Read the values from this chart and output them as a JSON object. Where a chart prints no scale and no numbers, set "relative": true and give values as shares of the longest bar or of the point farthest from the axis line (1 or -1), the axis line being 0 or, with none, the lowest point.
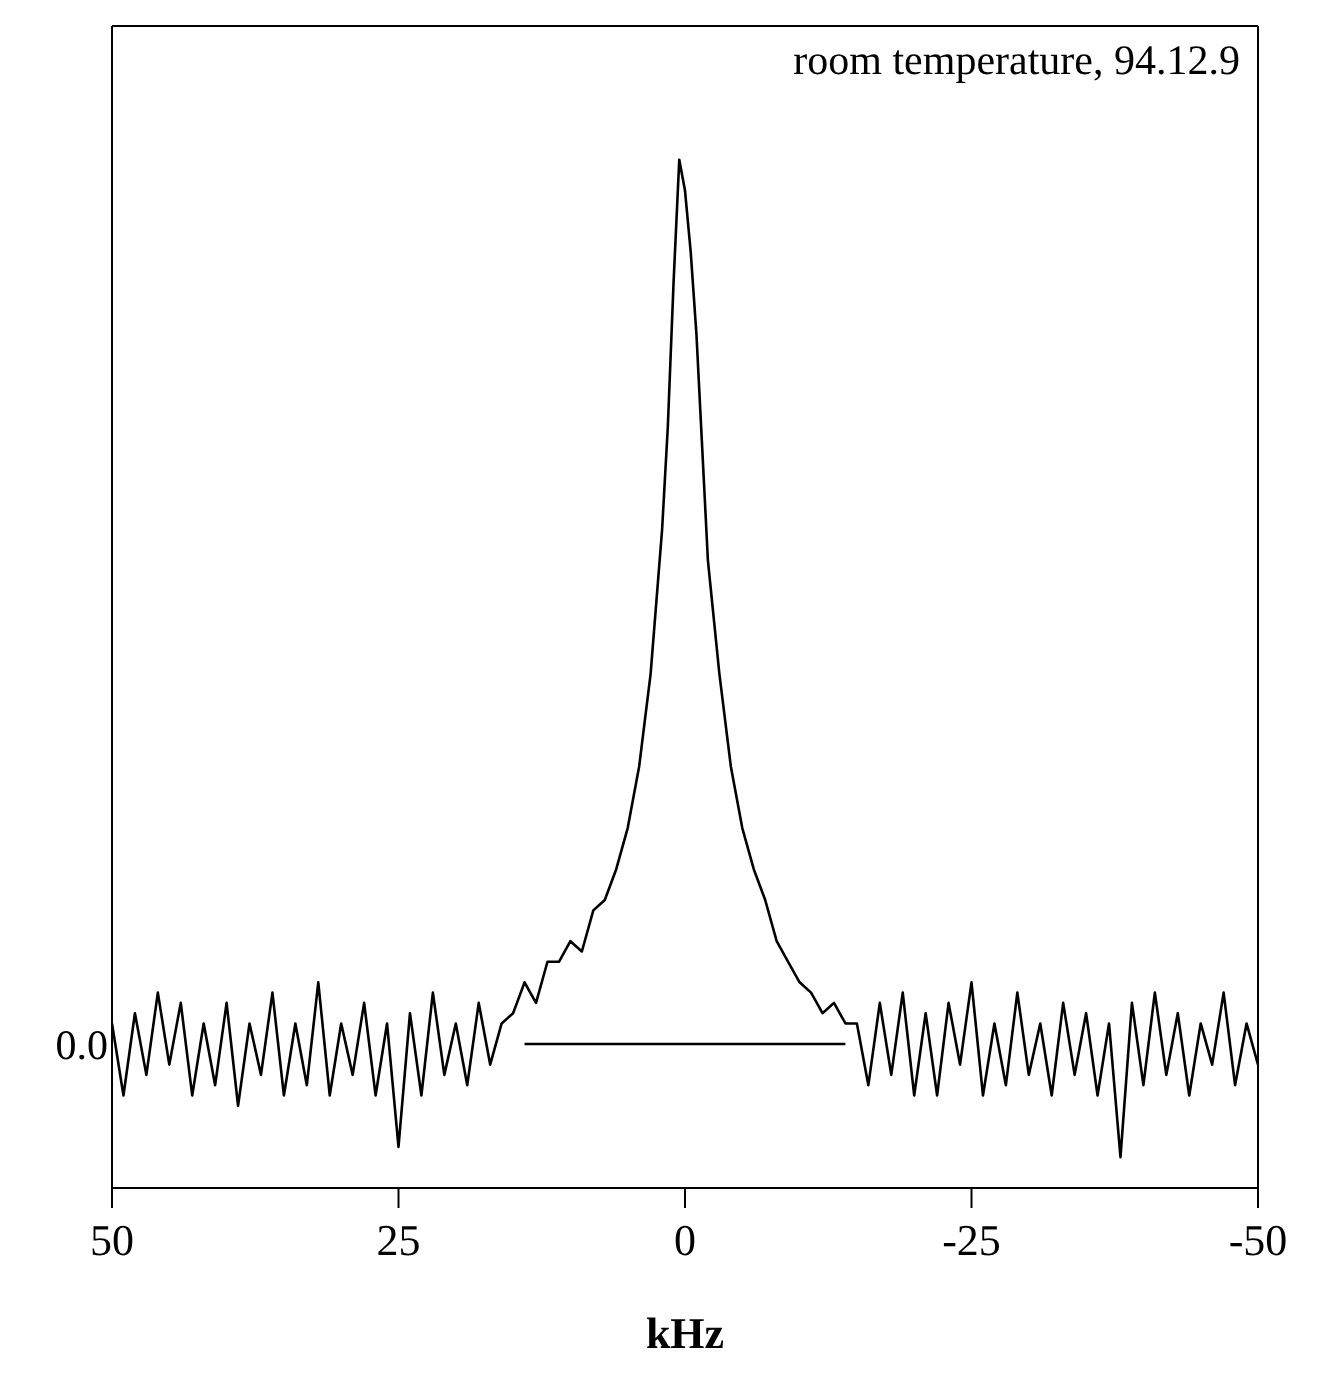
{
  "chart_data": {
    "type": "line",
    "title": "room temperature, 94.12.9",
    "xlabel": "kHz",
    "relative": true,
    "xlim": [
      50,
      -50
    ],
    "xticks": [
      50,
      25,
      0,
      -25,
      -50
    ],
    "annotations": [
      "0.0"
    ],
    "series": [
      {
        "color": "#000000",
        "x": [
          50,
          49,
          48,
          47,
          46,
          45,
          44,
          43,
          42,
          41,
          40,
          39,
          38,
          37,
          36,
          35,
          34,
          33,
          32,
          31,
          30,
          29,
          28,
          27,
          26,
          25,
          24,
          23,
          22,
          21,
          20,
          19,
          18,
          17,
          16,
          15,
          14,
          13,
          12,
          11,
          10,
          9,
          8,
          7,
          6,
          5,
          4,
          3,
          2,
          1.5,
          1,
          0.5,
          0,
          -0.5,
          -1,
          -1.5,
          -2,
          -3,
          -4,
          -5,
          -6,
          -7,
          -8,
          -9,
          -10,
          -11,
          -12,
          -13,
          -14,
          -15,
          -16,
          -17,
          -18,
          -19,
          -20,
          -21,
          -22,
          -23,
          -24,
          -25,
          -26,
          -27,
          -28,
          -29,
          -30,
          -31,
          -32,
          -33,
          -34,
          -35,
          -36,
          -37,
          -38,
          -39,
          -40,
          -41,
          -42,
          -43,
          -44,
          -45,
          -46,
          -47,
          -48,
          -49,
          -50
        ],
        "values": [
          0.16,
          0.09,
          0.17,
          0.11,
          0.19,
          0.12,
          0.18,
          0.09,
          0.16,
          0.1,
          0.18,
          0.08,
          0.16,
          0.11,
          0.19,
          0.09,
          0.16,
          0.1,
          0.2,
          0.09,
          0.16,
          0.11,
          0.18,
          0.09,
          0.16,
          0.04,
          0.17,
          0.09,
          0.19,
          0.11,
          0.16,
          0.1,
          0.18,
          0.12,
          0.16,
          0.17,
          0.2,
          0.18,
          0.22,
          0.22,
          0.24,
          0.23,
          0.27,
          0.28,
          0.31,
          0.35,
          0.41,
          0.5,
          0.64,
          0.74,
          0.88,
          1.0,
          0.97,
          0.91,
          0.83,
          0.72,
          0.61,
          0.5,
          0.41,
          0.35,
          0.31,
          0.28,
          0.24,
          0.22,
          0.2,
          0.19,
          0.17,
          0.18,
          0.16,
          0.16,
          0.1,
          0.18,
          0.11,
          0.19,
          0.09,
          0.17,
          0.09,
          0.18,
          0.12,
          0.2,
          0.09,
          0.16,
          0.1,
          0.19,
          0.11,
          0.16,
          0.09,
          0.18,
          0.11,
          0.17,
          0.09,
          0.16,
          0.03,
          0.18,
          0.1,
          0.19,
          0.11,
          0.17,
          0.09,
          0.16,
          0.12,
          0.19,
          0.1,
          0.16,
          0.12
        ]
      },
      {
        "type": "line",
        "color": "#000000",
        "x": [
          14,
          -14
        ],
        "values": [
          0.14,
          0.14
        ]
      }
    ]
  }
}
